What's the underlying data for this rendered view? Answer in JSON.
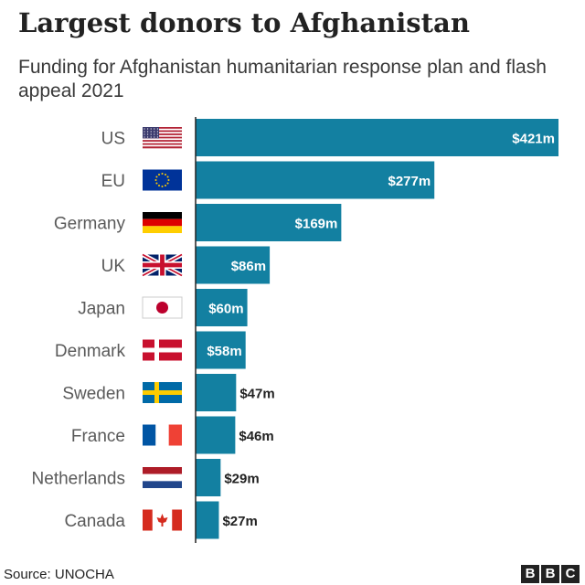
{
  "title": "Largest donors to Afghanistan",
  "subtitle": "Funding for Afghanistan humanitarian response plan and flash appeal 2021",
  "source": "Source: UNOCHA",
  "logo": [
    "B",
    "B",
    "C"
  ],
  "colors": {
    "bar": "#1380a1",
    "axis": "#222222",
    "label": "#5a5a5a"
  },
  "chart_data": {
    "type": "bar",
    "orientation": "horizontal",
    "unit": "$ million",
    "categories": [
      "US",
      "EU",
      "Germany",
      "UK",
      "Japan",
      "Denmark",
      "Sweden",
      "France",
      "Netherlands",
      "Canada"
    ],
    "values": [
      421,
      277,
      169,
      86,
      60,
      58,
      47,
      46,
      29,
      27
    ],
    "value_labels": [
      "$421m",
      "$277m",
      "$169m",
      "$86m",
      "$60m",
      "$58m",
      "$47m",
      "$46m",
      "$29m",
      "$27m"
    ],
    "flag_icons": [
      "us-flag-icon",
      "eu-flag-icon",
      "germany-flag-icon",
      "uk-flag-icon",
      "japan-flag-icon",
      "denmark-flag-icon",
      "sweden-flag-icon",
      "france-flag-icon",
      "netherlands-flag-icon",
      "canada-flag-icon"
    ],
    "xlim": [
      0,
      421
    ],
    "grid": false,
    "legend": "none"
  }
}
